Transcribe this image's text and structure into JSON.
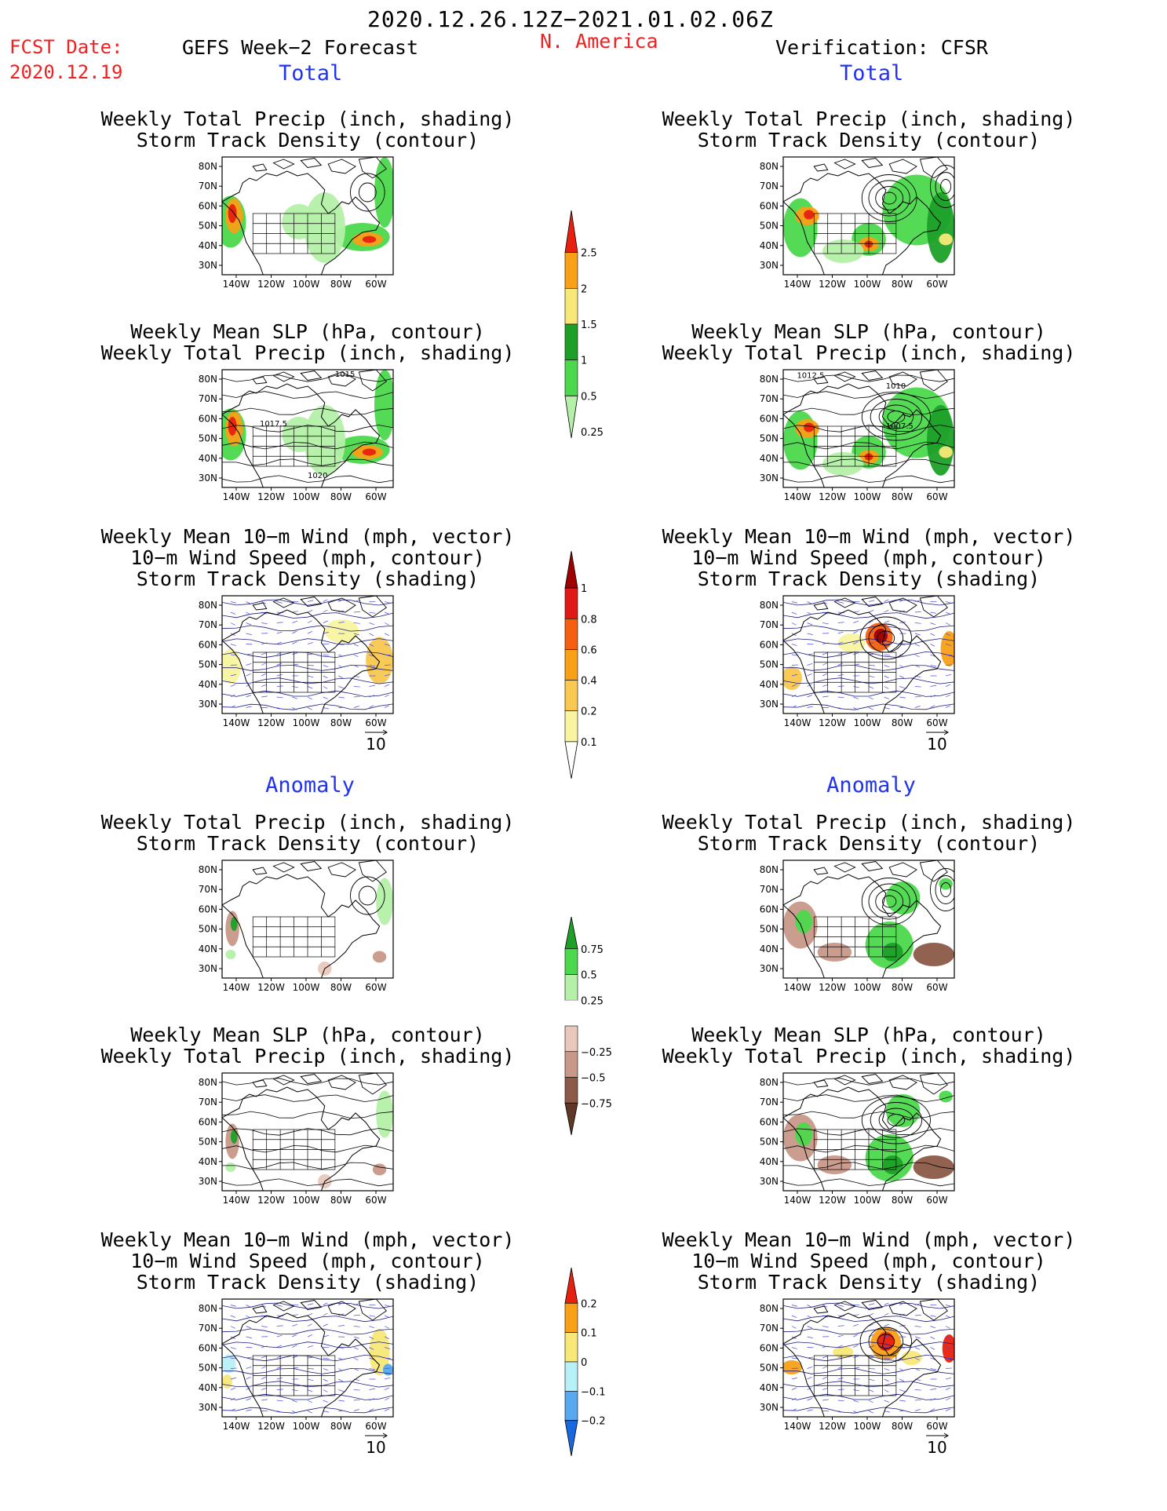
{
  "header": {
    "period": "2020.12.26.12Z−2021.01.02.06Z",
    "fcst_label": "FCST Date:",
    "fcst_date": "2020.12.19",
    "region": "N. America",
    "left_model": "GEFS Week−2 Forecast",
    "right_model": "Verification: CFSR"
  },
  "sections": {
    "total": "Total",
    "anomaly": "Anomaly"
  },
  "panel_titles": {
    "precip_track": [
      "Weekly Total Precip (inch, shading)",
      "Storm Track Density (contour)"
    ],
    "slp_precip": [
      "Weekly Mean SLP (hPa, contour)",
      "Weekly Total Precip (inch, shading)"
    ],
    "wind_track": [
      "Weekly Mean 10−m Wind (mph, vector)",
      "10−m Wind Speed (mph, contour)",
      "Storm Track Density (shading)"
    ]
  },
  "axes": {
    "lat_labels": [
      "80N",
      "70N",
      "60N",
      "50N",
      "40N",
      "30N"
    ],
    "lon_labels": [
      "140W",
      "120W",
      "100W",
      "80W",
      "60W"
    ]
  },
  "contour_labels": {
    "gefs_total_slp": [
      "1015",
      "1017.5",
      "1020"
    ],
    "cfsr_total_slp": [
      "1012.5",
      "1010",
      "1007.5"
    ]
  },
  "vector_ref": "10",
  "colorbars": {
    "precip_total": {
      "labels": [
        "2.5",
        "2",
        "1.5",
        "1",
        "0.5",
        "0.25"
      ],
      "colors": [
        "#e82010",
        "#f8a018",
        "#f8e878",
        "#1ea028",
        "#4cd84c",
        "#b4f0a8"
      ]
    },
    "track_total": {
      "labels": [
        "1",
        "0.8",
        "0.6",
        "0.4",
        "0.2",
        "0.1"
      ],
      "colors": [
        "#a00000",
        "#e01818",
        "#f46010",
        "#f8a018",
        "#f8c850",
        "#f8f4a0",
        "#ffffff"
      ]
    },
    "precip_anom": {
      "labels": [
        "0.75",
        "0.5",
        "0.25",
        "−0.25",
        "−0.5",
        "−0.75"
      ],
      "colors": [
        "#1ea028",
        "#4cd84c",
        "#b4f0a8",
        "#ffffff",
        "#e8c8bc",
        "#c89888",
        "#8c5a48",
        "#603828"
      ]
    },
    "track_anom": {
      "labels": [
        "0.2",
        "0.1",
        "0",
        "−0.1",
        "−0.2"
      ],
      "colors": [
        "#e82010",
        "#f8a018",
        "#f8e878",
        "#b8f0f8",
        "#58a8f0",
        "#1868e0"
      ]
    }
  }
}
